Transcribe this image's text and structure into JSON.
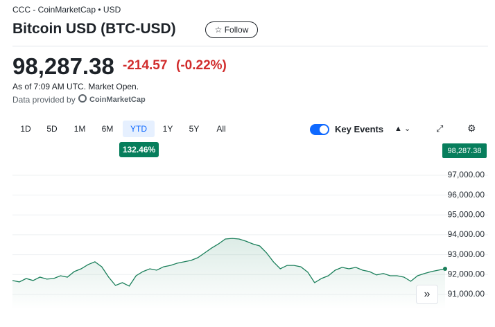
{
  "header": {
    "breadcrumb": "CCC - CoinMarketCap • USD",
    "title": "Bitcoin USD (BTC-USD)",
    "follow": "Follow"
  },
  "quote": {
    "price": "98,287.38",
    "change": "-214.57",
    "change_pct": "(-0.22%)",
    "as_of": "As of 7:09 AM UTC. Market Open.",
    "provider_label": "Data provided by",
    "provider": "CoinMarketCap"
  },
  "controls": {
    "ranges": [
      "1D",
      "5D",
      "1M",
      "6M",
      "YTD",
      "1Y",
      "5Y",
      "All"
    ],
    "selected_range": 4,
    "range_change": "132.46%",
    "key_events": "Key Events"
  },
  "chart_data": {
    "type": "line",
    "ylim": [
      90230,
      97940
    ],
    "yticks": [
      {
        "value": 91000,
        "label": "91,000.00"
      },
      {
        "value": 92000,
        "label": "92,000.00"
      },
      {
        "value": 93000,
        "label": "93,000.00"
      },
      {
        "value": 94000,
        "label": "94,000.00"
      },
      {
        "value": 95000,
        "label": "95,000.00"
      },
      {
        "value": 96000,
        "label": "96,000.00"
      },
      {
        "value": 97000,
        "label": "97,000.00"
      }
    ],
    "grid": true,
    "last_price_label": "98,287.38",
    "series": [
      {
        "color": "#1a7f5a",
        "values": [
          91700,
          91630,
          91800,
          91700,
          91870,
          91770,
          91800,
          91940,
          91870,
          92150,
          92290,
          92500,
          92640,
          92390,
          91870,
          91450,
          91590,
          91420,
          91940,
          92150,
          92290,
          92220,
          92390,
          92460,
          92570,
          92640,
          92710,
          92850,
          93090,
          93330,
          93540,
          93790,
          93820,
          93790,
          93680,
          93540,
          93440,
          93090,
          92640,
          92290,
          92460,
          92460,
          92390,
          92120,
          91590,
          91800,
          91940,
          92220,
          92360,
          92290,
          92360,
          92220,
          92150,
          91980,
          92050,
          91940,
          91940,
          91870,
          91660,
          91940,
          92050,
          92150,
          92220,
          92290
        ]
      }
    ]
  }
}
